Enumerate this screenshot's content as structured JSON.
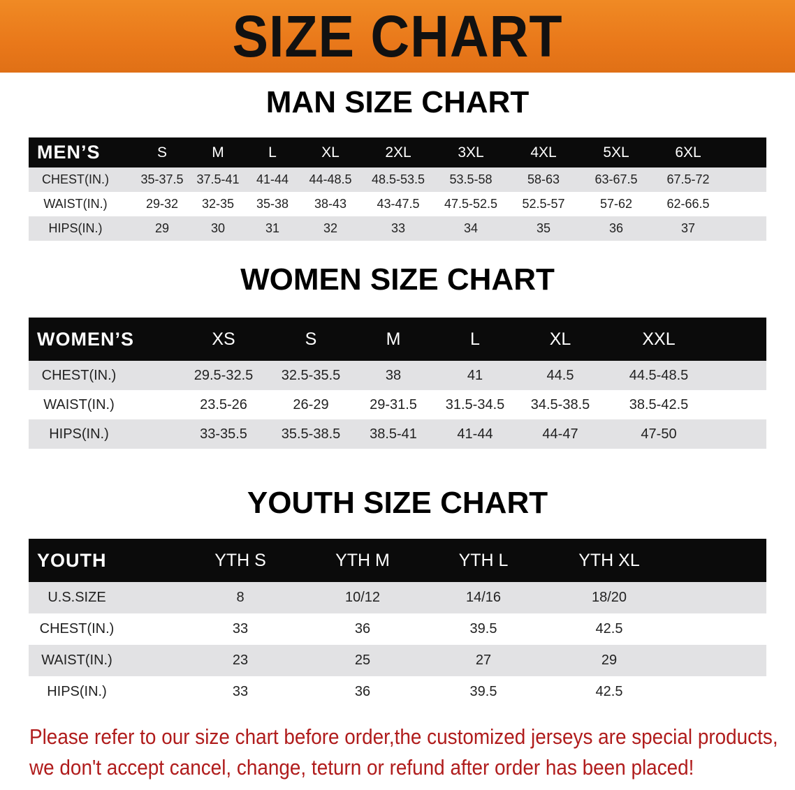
{
  "banner_title": "SIZE CHART",
  "men": {
    "title": "MAN SIZE CHART",
    "header": [
      "MEN’S",
      "S",
      "M",
      "L",
      "XL",
      "2XL",
      "3XL",
      "4XL",
      "5XL",
      "6XL"
    ],
    "rows": [
      [
        "CHEST(IN.)",
        "35-37.5",
        "37.5-41",
        "41-44",
        "44-48.5",
        "48.5-53.5",
        "53.5-58",
        "58-63",
        "63-67.5",
        "67.5-72"
      ],
      [
        "WAIST(IN.)",
        "29-32",
        "32-35",
        "35-38",
        "38-43",
        "43-47.5",
        "47.5-52.5",
        "52.5-57",
        "57-62",
        "62-66.5"
      ],
      [
        "HIPS(IN.)",
        "29",
        "30",
        "31",
        "32",
        "33",
        "34",
        "35",
        "36",
        "37"
      ]
    ]
  },
  "women": {
    "title": "WOMEN SIZE CHART",
    "header": [
      "WOMEN’S",
      "XS",
      "S",
      "M",
      "L",
      "XL",
      "XXL"
    ],
    "rows": [
      [
        "CHEST(IN.)",
        "29.5-32.5",
        "32.5-35.5",
        "38",
        "41",
        "44.5",
        "44.5-48.5"
      ],
      [
        "WAIST(IN.)",
        "23.5-26",
        "26-29",
        "29-31.5",
        "31.5-34.5",
        "34.5-38.5",
        "38.5-42.5"
      ],
      [
        "HIPS(IN.)",
        "33-35.5",
        "35.5-38.5",
        "38.5-41",
        "41-44",
        "44-47",
        "47-50"
      ]
    ]
  },
  "youth": {
    "title": "YOUTH SIZE CHART",
    "header": [
      "YOUTH",
      "YTH S",
      "YTH M",
      "YTH L",
      "YTH XL"
    ],
    "rows": [
      [
        "U.S.SIZE",
        "8",
        "10/12",
        "14/16",
        "18/20"
      ],
      [
        "CHEST(IN.)",
        "33",
        "36",
        "39.5",
        "42.5"
      ],
      [
        "WAIST(IN.)",
        "23",
        "25",
        "27",
        "29"
      ],
      [
        "HIPS(IN.)",
        "33",
        "36",
        "39.5",
        "42.5"
      ]
    ]
  },
  "notice": [
    "Please refer to our size chart before order,the customized jerseys are special products,",
    "we don't accept cancel, change, teturn or refund after order has been placed!"
  ],
  "colors": {
    "banner": "#e9781a",
    "header_row": "#0b0b0b",
    "stripe": "#e2e2e4",
    "notice": "#b01c1c"
  }
}
